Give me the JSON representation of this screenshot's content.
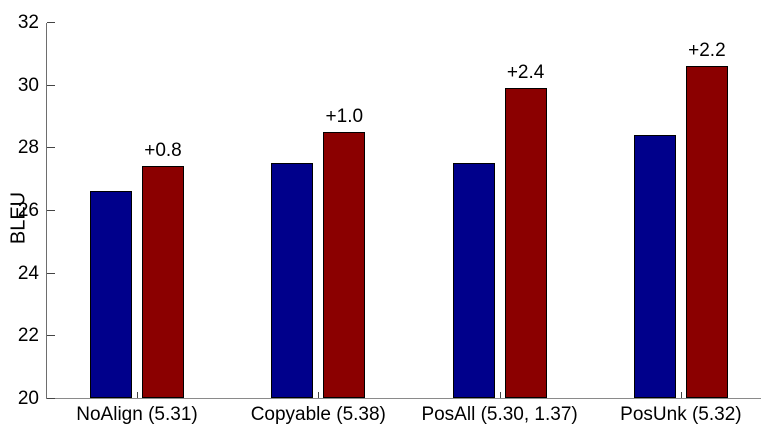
{
  "chart_data": {
    "type": "bar",
    "title": "",
    "ylabel": "BLEU",
    "xlabel": "",
    "ylim": [
      20,
      32
    ],
    "yticks": [
      20,
      22,
      24,
      26,
      28,
      30,
      32
    ],
    "grid": false,
    "legend": "none",
    "categories": [
      "NoAlign (5.31)",
      "Copyable (5.38)",
      "PosAll (5.30, 1.37)",
      "PosUnk (5.32)"
    ],
    "series": [
      {
        "name": "blue",
        "color": "#00008B",
        "values": [
          26.6,
          27.5,
          27.5,
          28.4
        ]
      },
      {
        "name": "dark-red",
        "color": "#8B0000",
        "values": [
          27.4,
          28.5,
          29.9,
          30.6
        ],
        "annotations": [
          "+0.8",
          "+1.0",
          "+2.4",
          "+2.2"
        ]
      }
    ]
  },
  "colors": {
    "axis": "#6e6e6e",
    "tick": "#444444",
    "text": "#000000",
    "background": "#ffffff"
  }
}
